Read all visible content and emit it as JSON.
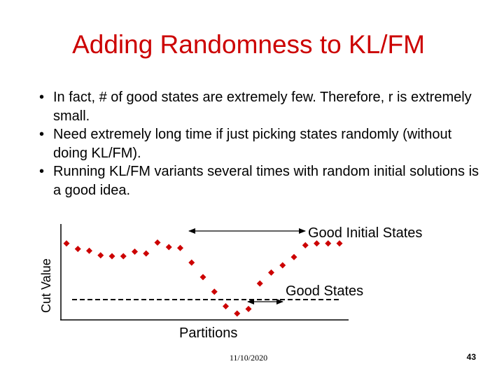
{
  "slide": {
    "title": "Adding Randomness to KL/FM",
    "bullets": [
      "In fact, # of good states are extremely few. Therefore, r is extremely small.",
      "Need extremely long time if just picking states randomly (without doing KL/FM).",
      "Running KL/FM variants several times with random initial solutions is a good idea."
    ],
    "bullet_symbol": "•",
    "footer": {
      "date": "11/10/2020",
      "page": "43"
    }
  },
  "chart_data": {
    "type": "scatter",
    "xlabel": "Partitions",
    "ylabel": "Cut Value",
    "marker_color": "#cc0000",
    "points": [
      [
        0,
        84
      ],
      [
        1,
        78
      ],
      [
        2,
        76
      ],
      [
        3,
        71
      ],
      [
        4,
        70
      ],
      [
        5,
        70
      ],
      [
        6,
        75
      ],
      [
        7,
        73
      ],
      [
        8,
        85
      ],
      [
        9,
        80
      ],
      [
        10,
        79
      ],
      [
        11,
        63
      ],
      [
        12,
        47
      ],
      [
        13,
        31
      ],
      [
        14,
        15
      ],
      [
        15,
        7
      ],
      [
        16,
        12
      ],
      [
        17,
        40
      ],
      [
        18,
        52
      ],
      [
        19,
        60
      ],
      [
        20,
        69
      ],
      [
        21,
        82
      ],
      [
        22,
        84
      ],
      [
        23,
        84
      ],
      [
        24,
        84
      ]
    ],
    "annotations": [
      {
        "label": "Good Initial States",
        "type": "double-arrow"
      },
      {
        "label": "Good States",
        "type": "double-arrow"
      }
    ],
    "reference_line": {
      "style": "dashed",
      "y": 18
    }
  }
}
